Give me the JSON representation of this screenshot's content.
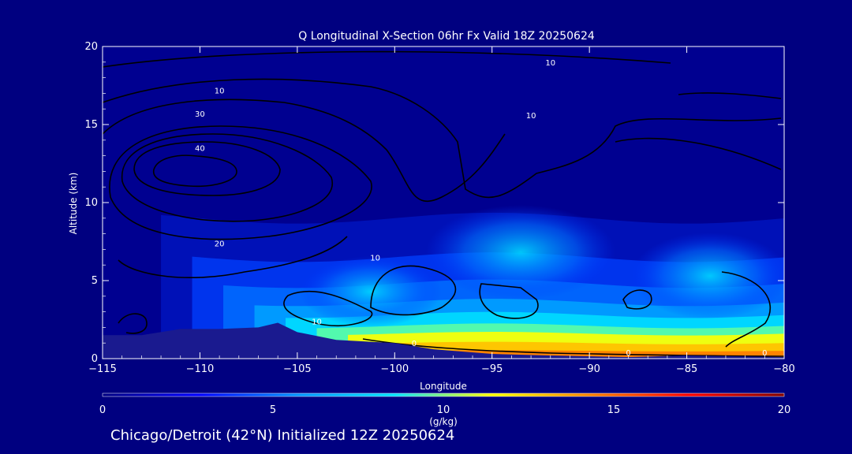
{
  "chart_data": {
    "type": "heatmap",
    "title": "Q Longitudinal X-Section 06hr  Fx Valid 18Z 20250624",
    "xlabel": "Longitude",
    "ylabel": "Altitude (km)",
    "xlim": [
      -115,
      -80
    ],
    "ylim": [
      0,
      20
    ],
    "xticks": [
      "−115",
      "−110",
      "−105",
      "−100",
      "−95",
      "−90",
      "−85",
      "−80"
    ],
    "yticks": [
      "0",
      "5",
      "10",
      "15",
      "20"
    ],
    "colorbar": {
      "label": "(g/kg)",
      "range": [
        0,
        20
      ],
      "ticks": [
        "0",
        "5",
        "10",
        "15",
        "20"
      ],
      "colors": [
        "#000080",
        "#0000ff",
        "#0090ff",
        "#00e0ff",
        "#ffff00",
        "#ff8000",
        "#ff0000",
        "#800000"
      ]
    },
    "terrain_km": {
      "x": [
        -115,
        -113,
        -111,
        -109,
        -107,
        -106,
        -105,
        -103,
        -100,
        -98,
        -95,
        -92,
        -88,
        -85,
        -80
      ],
      "y": [
        1.5,
        1.5,
        1.9,
        1.9,
        2.0,
        2.3,
        1.7,
        1.2,
        1.0,
        0.6,
        0.3,
        0.2,
        0.1,
        0.2,
        0.1
      ]
    },
    "surface_moisture_max_gkg": 15,
    "contour_labels": [
      {
        "text": "10",
        "x": -101,
        "y": 6.3
      },
      {
        "text": "20",
        "x": -109,
        "y": 7.2
      },
      {
        "text": "30",
        "x": -110,
        "y": 15.5
      },
      {
        "text": "40",
        "x": -110,
        "y": 13.3
      },
      {
        "text": "10",
        "x": -109,
        "y": 17.0
      },
      {
        "text": "10",
        "x": -93,
        "y": 15.4
      },
      {
        "text": "10",
        "x": -92,
        "y": 18.8
      },
      {
        "text": "10",
        "x": -104,
        "y": 2.2
      },
      {
        "text": "0",
        "x": -99,
        "y": 0.8
      },
      {
        "text": "0",
        "x": -88,
        "y": 0.2
      },
      {
        "text": "0",
        "x": -81,
        "y": 0.2
      }
    ]
  },
  "footer": "Chicago/Detroit (42°N) Initialized 12Z 20250624"
}
